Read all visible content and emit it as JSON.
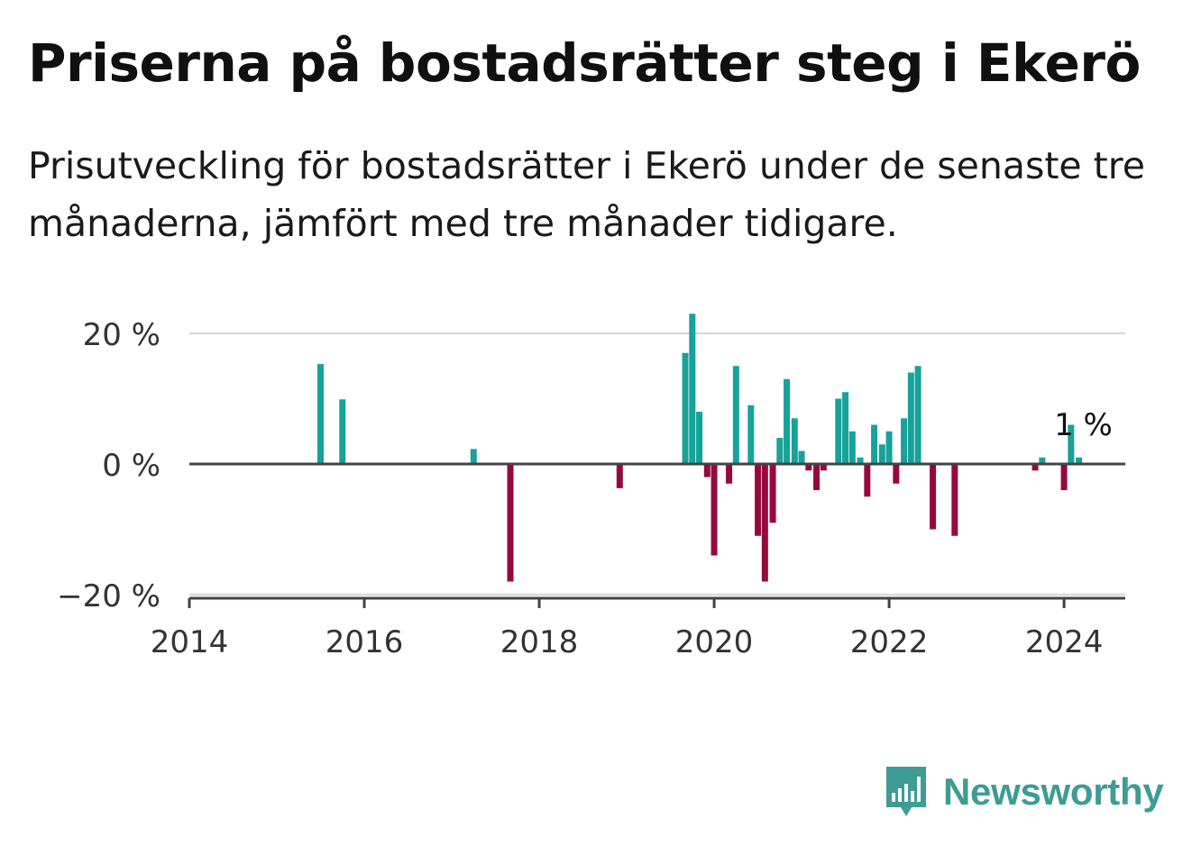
{
  "title": "Priserna på bostadsrätter steg i Ekerö",
  "subtitle": "Prisutveckling för bostadsrätter i Ekerö under de senaste tre månaderna, jämfört med tre månader tidigare.",
  "logo": {
    "text": "Newsworthy",
    "icon": "speech-bubble-bar-chart-icon"
  },
  "colors": {
    "positive": "#17a29a",
    "negative": "#96093f",
    "grid": "#d9d9d9",
    "axis": "#444444",
    "brand": "#3e9b95"
  },
  "chart_data": {
    "type": "bar",
    "ylim": [
      -20,
      25
    ],
    "yticks": [
      20,
      0,
      -20
    ],
    "ytick_labels": [
      "20 %",
      "0 %",
      "−20 %"
    ],
    "xlim": [
      2014,
      2024.7
    ],
    "xticks": [
      "2014",
      "2016",
      "2018",
      "2020",
      "2022",
      "2024"
    ],
    "grid": true,
    "annotation": {
      "text": "1 %",
      "x": 2024.2,
      "y": 1
    },
    "points": [
      {
        "x": 2015.5,
        "y": 15.3
      },
      {
        "x": 2015.75,
        "y": 9.9
      },
      {
        "x": 2017.25,
        "y": 2.3
      },
      {
        "x": 2017.67,
        "y": -18.0
      },
      {
        "x": 2018.92,
        "y": -3.7
      },
      {
        "x": 2019.67,
        "y": 17.0
      },
      {
        "x": 2019.75,
        "y": 23.0
      },
      {
        "x": 2019.83,
        "y": 8.0
      },
      {
        "x": 2019.92,
        "y": -2.0
      },
      {
        "x": 2020.0,
        "y": -14.0
      },
      {
        "x": 2020.17,
        "y": -3.0
      },
      {
        "x": 2020.25,
        "y": 15.0
      },
      {
        "x": 2020.42,
        "y": 9.0
      },
      {
        "x": 2020.5,
        "y": -11.0
      },
      {
        "x": 2020.58,
        "y": -18.0
      },
      {
        "x": 2020.67,
        "y": -9.0
      },
      {
        "x": 2020.75,
        "y": 4.0
      },
      {
        "x": 2020.83,
        "y": 13.0
      },
      {
        "x": 2020.92,
        "y": 7.0
      },
      {
        "x": 2021.0,
        "y": 2.0
      },
      {
        "x": 2021.08,
        "y": -1.0
      },
      {
        "x": 2021.17,
        "y": -4.0
      },
      {
        "x": 2021.25,
        "y": -1.0
      },
      {
        "x": 2021.42,
        "y": 10.0
      },
      {
        "x": 2021.5,
        "y": 11.0
      },
      {
        "x": 2021.58,
        "y": 5.0
      },
      {
        "x": 2021.67,
        "y": 1.0
      },
      {
        "x": 2021.75,
        "y": -5.0
      },
      {
        "x": 2021.83,
        "y": 6.0
      },
      {
        "x": 2021.92,
        "y": 3.0
      },
      {
        "x": 2022.0,
        "y": 5.0
      },
      {
        "x": 2022.08,
        "y": -3.0
      },
      {
        "x": 2022.17,
        "y": 7.0
      },
      {
        "x": 2022.25,
        "y": 14.0
      },
      {
        "x": 2022.33,
        "y": 15.0
      },
      {
        "x": 2022.5,
        "y": -10.0
      },
      {
        "x": 2022.75,
        "y": -11.0
      },
      {
        "x": 2023.67,
        "y": -1.0
      },
      {
        "x": 2023.75,
        "y": 1.0
      },
      {
        "x": 2024.0,
        "y": -4.0
      },
      {
        "x": 2024.08,
        "y": 6.0
      },
      {
        "x": 2024.17,
        "y": 1.0
      }
    ]
  }
}
